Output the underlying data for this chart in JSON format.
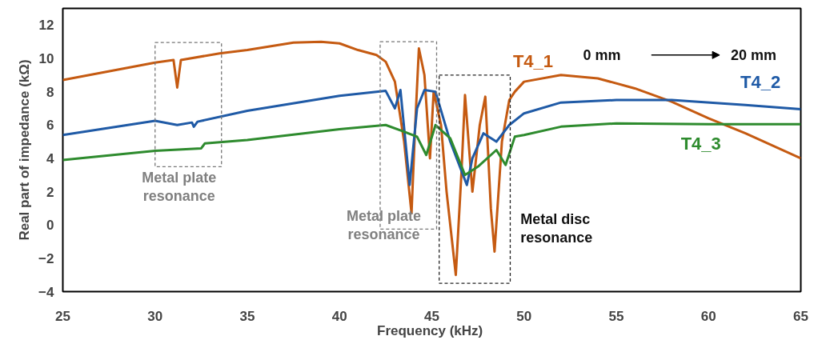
{
  "chart_data": {
    "type": "line",
    "xlabel": "Frequency  (kHz)",
    "ylabel": "Real part of impedance (kΩ)",
    "xlim": [
      25,
      65
    ],
    "xticks": [
      25,
      30,
      35,
      40,
      45,
      50,
      55,
      60,
      65
    ],
    "ylim": [
      -4,
      13
    ],
    "yticks": [
      12,
      10,
      8,
      6,
      4,
      2,
      0,
      -2,
      -4
    ],
    "grid": false,
    "legend": false,
    "line_style": "solid",
    "marker": "none",
    "series": [
      {
        "name": "T4_1",
        "color": "#c55a11",
        "x": [
          25,
          30,
          31,
          31.2,
          31.4,
          33.5,
          35,
          37.5,
          39,
          40,
          41,
          42,
          42.5,
          43,
          43.5,
          43.9,
          44.1,
          44.3,
          44.6,
          44.9,
          45.1,
          45.5,
          45.8,
          46.3,
          46.6,
          46.8,
          47.2,
          47.6,
          47.9,
          48.2,
          48.4,
          48.8,
          49.2,
          49.5,
          50,
          52,
          54,
          56,
          58,
          60,
          62,
          65
        ],
        "values": [
          8.7,
          9.75,
          9.9,
          8.25,
          9.9,
          10.3,
          10.5,
          10.95,
          11.0,
          10.9,
          10.5,
          10.2,
          9.8,
          8.6,
          5,
          0.7,
          6,
          10.6,
          9,
          4,
          8,
          6,
          2,
          -3.0,
          3,
          7.8,
          2,
          6,
          7.7,
          1,
          -1.6,
          5,
          7.5,
          8.0,
          8.6,
          9.0,
          8.8,
          8.2,
          7.4,
          6.4,
          5.5,
          4.0
        ]
      },
      {
        "name": "T4_2",
        "color": "#1f5aa6",
        "x": [
          25,
          30,
          31.2,
          32,
          32.1,
          32.3,
          35,
          40,
          42.5,
          43,
          43.3,
          43.8,
          44.2,
          44.6,
          45.2,
          45.6,
          46,
          46.9,
          47.2,
          47.8,
          48.5,
          49.2,
          50,
          52,
          55,
          58,
          62,
          65
        ],
        "values": [
          5.4,
          6.25,
          6.0,
          6.15,
          5.9,
          6.2,
          6.85,
          7.75,
          8.05,
          7,
          8.1,
          2.4,
          7,
          8.1,
          8.0,
          6.5,
          5,
          2.4,
          4,
          5.5,
          5.0,
          6.0,
          6.7,
          7.35,
          7.5,
          7.5,
          7.2,
          6.95
        ]
      },
      {
        "name": "T4_3",
        "color": "#2e8b2e",
        "x": [
          25,
          30,
          32.5,
          32.7,
          35,
          40,
          42.5,
          43.5,
          44.2,
          44.7,
          45.2,
          46,
          46.8,
          47.5,
          48.5,
          49,
          49.5,
          50,
          52,
          55,
          60,
          65
        ],
        "values": [
          3.9,
          4.45,
          4.6,
          4.9,
          5.1,
          5.75,
          6.0,
          5.6,
          5.3,
          4.2,
          6.0,
          5.2,
          3.0,
          3.5,
          4.5,
          3.6,
          5.3,
          5.4,
          5.9,
          6.1,
          6.05,
          6.05
        ]
      }
    ],
    "annotations": [
      "Metal plate resonance",
      "Metal plate resonance",
      "Metal disc resonance",
      "0 mm",
      "20 mm"
    ]
  }
}
